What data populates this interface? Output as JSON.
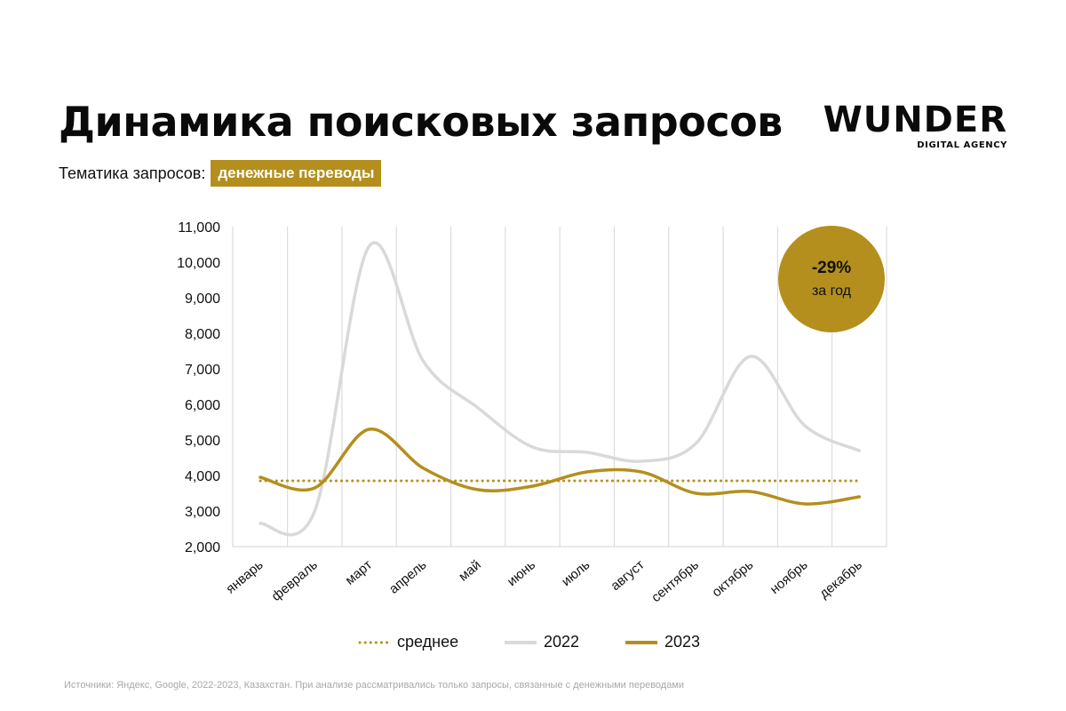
{
  "header": {
    "title": "Динамика поисковых запросов",
    "topic_label": "Тематика запросов:",
    "topic_value": "денежные переводы"
  },
  "logo": {
    "word": "WUNDER",
    "tagline": "DIGITAL AGENCY"
  },
  "badge": {
    "value": "-29%",
    "caption": "за год"
  },
  "footnote": "Источники: Яндекс, Google, 2022-2023, Казахстан. При анализе рассматривались только запросы, связанные с денежными переводами",
  "colors": {
    "gold": "#b48f1d",
    "light_gray": "#d9d9d9",
    "grid": "#d6d6d6"
  },
  "chart_data": {
    "type": "line",
    "categories": [
      "январь",
      "февраль",
      "март",
      "апрель",
      "май",
      "июнь",
      "июль",
      "август",
      "сентябрь",
      "октябрь",
      "ноябрь",
      "декабрь"
    ],
    "ylim": [
      2000,
      11000
    ],
    "yticks": [
      2000,
      3000,
      4000,
      5000,
      6000,
      7000,
      8000,
      9000,
      10000,
      11000
    ],
    "ytick_labels": [
      "2,000",
      "3,000",
      "4,000",
      "5,000",
      "6,000",
      "7,000",
      "8,000",
      "9,000",
      "10,000",
      "11,000"
    ],
    "grid": "vertical",
    "legend_position": "bottom",
    "series": [
      {
        "name": "среднее",
        "style": "dotted",
        "color": "#b48f1d",
        "values": [
          3850,
          3850,
          3850,
          3850,
          3850,
          3850,
          3850,
          3850,
          3850,
          3850,
          3850,
          3850
        ]
      },
      {
        "name": "2022",
        "style": "solid",
        "color": "#d9d9d9",
        "values": [
          2650,
          3000,
          10450,
          7200,
          5900,
          4800,
          4650,
          4400,
          4900,
          7350,
          5400,
          4700
        ]
      },
      {
        "name": "2023",
        "style": "solid",
        "color": "#b48f1d",
        "values": [
          3950,
          3650,
          5300,
          4200,
          3600,
          3700,
          4100,
          4100,
          3500,
          3550,
          3200,
          3400
        ]
      }
    ]
  }
}
